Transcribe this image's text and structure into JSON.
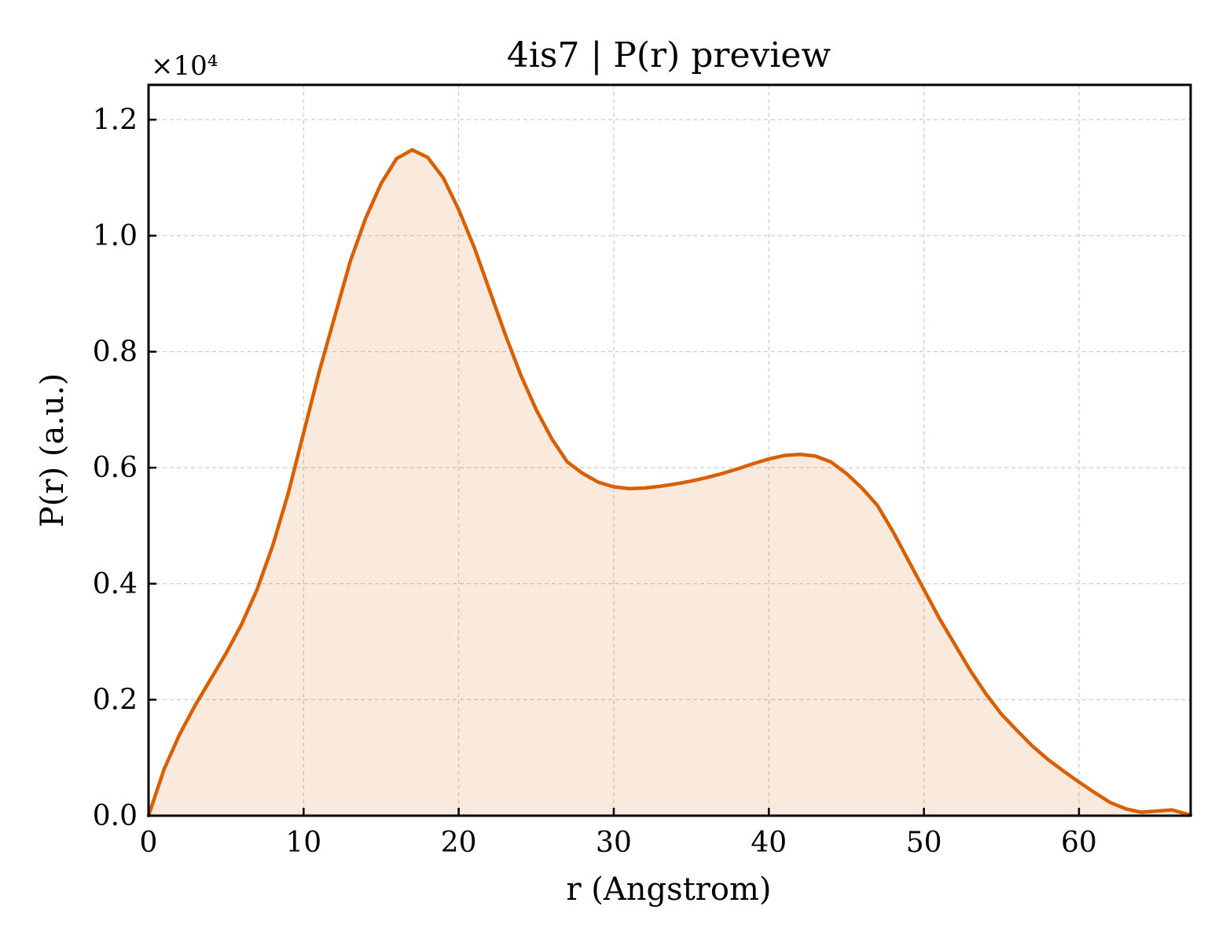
{
  "chart_data": {
    "type": "area",
    "title": "4is7 | P(r) preview",
    "xlabel": "r (Angstrom)",
    "ylabel": "P(r) (a.u.)",
    "y_multiplier_label": "×10⁴",
    "y_scale_factor": 10000,
    "xlim": [
      0,
      67.2
    ],
    "ylim": [
      0,
      1.26
    ],
    "xticks": [
      0,
      10,
      20,
      30,
      40,
      50,
      60
    ],
    "xtick_labels": [
      "0",
      "10",
      "20",
      "30",
      "40",
      "50",
      "60"
    ],
    "yticks": [
      0.0,
      0.2,
      0.4,
      0.6,
      0.8,
      1.0,
      1.2
    ],
    "ytick_labels": [
      "0.0",
      "0.2",
      "0.4",
      "0.6",
      "0.8",
      "1.0",
      "1.2"
    ],
    "grid": true,
    "line_color": "#d95f02",
    "fill_color": "#d95f02",
    "fill_opacity": 0.13,
    "series": [
      {
        "x": [
          0,
          1,
          2,
          3,
          4,
          5,
          6,
          7,
          8,
          9,
          10,
          11,
          12,
          13,
          14,
          15,
          16,
          17,
          18,
          19,
          20,
          21,
          22,
          23,
          24,
          25,
          26,
          27,
          28,
          29,
          30,
          31,
          32,
          33,
          34,
          35,
          36,
          37,
          38,
          39,
          40,
          41,
          42,
          43,
          44,
          45,
          46,
          47,
          48,
          49,
          50,
          51,
          52,
          53,
          54,
          55,
          56,
          57,
          58,
          59,
          60,
          61,
          62,
          63,
          64,
          65,
          66,
          67.2
        ],
        "y": [
          0.0,
          0.08,
          0.14,
          0.19,
          0.235,
          0.28,
          0.33,
          0.39,
          0.465,
          0.555,
          0.66,
          0.765,
          0.86,
          0.955,
          1.03,
          1.09,
          1.133,
          1.148,
          1.135,
          1.1,
          1.045,
          0.98,
          0.905,
          0.83,
          0.76,
          0.7,
          0.65,
          0.61,
          0.59,
          0.575,
          0.567,
          0.564,
          0.565,
          0.568,
          0.572,
          0.577,
          0.583,
          0.59,
          0.598,
          0.607,
          0.615,
          0.621,
          0.623,
          0.62,
          0.61,
          0.59,
          0.565,
          0.535,
          0.49,
          0.44,
          0.39,
          0.34,
          0.295,
          0.25,
          0.21,
          0.175,
          0.147,
          0.12,
          0.097,
          0.077,
          0.058,
          0.04,
          0.023,
          0.012,
          0.006,
          0.008,
          0.01,
          0.001
        ]
      }
    ]
  }
}
